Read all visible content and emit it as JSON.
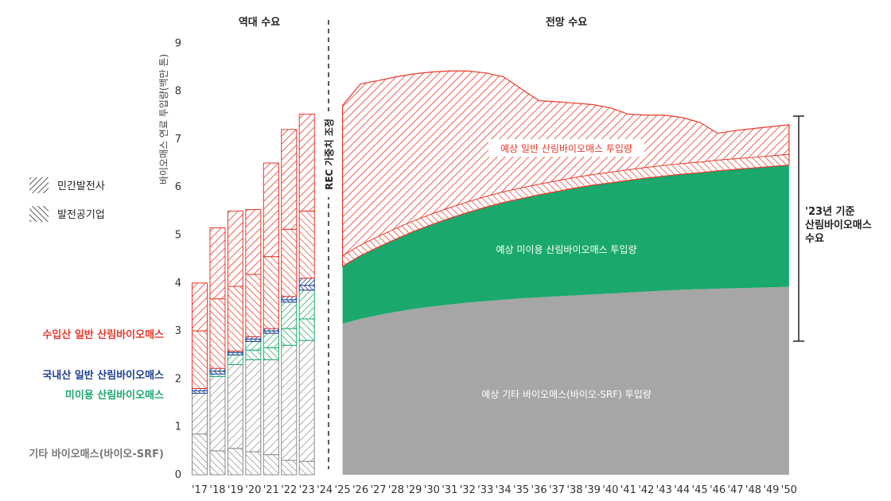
{
  "chart_data": {
    "type": "area",
    "ylabel": "바이오매스 연료 투입량(백만 톤)",
    "ylim": [
      0,
      9
    ],
    "yticks": [
      0,
      1,
      2,
      3,
      4,
      5,
      6,
      7,
      8,
      9
    ],
    "x_ticks": [
      "'17",
      "'18",
      "'19",
      "'20",
      "'21",
      "'22",
      "'23",
      "'24",
      "'25",
      "'26",
      "'27",
      "'28",
      "'29",
      "'30",
      "'31",
      "'32",
      "'33",
      "'34",
      "'35",
      "'36",
      "'37",
      "'38",
      "'39",
      "'40",
      "'41",
      "'42",
      "'43",
      "'44",
      "'45",
      "'46",
      "'47",
      "'48",
      "'49",
      "'50"
    ],
    "sections": {
      "historical": "역대 수요",
      "forecast": "전망 수요"
    },
    "divider_label": "REC 가중치 조정",
    "legend": {
      "private": "민간발전사",
      "public": "발전공기업"
    },
    "category_labels": {
      "imported": "수입산 일반 산림바이오매스",
      "domestic": "국내산 일반 산림바이오매스",
      "unused": "미이용 산림바이오매스",
      "other": "기타 바이오매스(바이오-SRF)"
    },
    "area_labels": {
      "general": "예상 일반 산림바이오매스 투입량",
      "unused": "예상 미이용 산림바이오매스 투입량",
      "other": "예상 기타 바이오매스(바이오-SRF) 투입량"
    },
    "bracket_label": [
      "'23년 기준",
      "산림바이오매스",
      "수요"
    ],
    "colors": {
      "imported": "#e8382b",
      "domestic": "#1d3f8f",
      "unused": "#1aa86c",
      "other": "#8a8a8a",
      "other_area": "#a6a6a6"
    },
    "historical": {
      "years": [
        "'17",
        "'18",
        "'19",
        "'20",
        "'21",
        "'22",
        "'23"
      ],
      "other": [
        1.7,
        2.05,
        2.3,
        2.4,
        2.4,
        2.7,
        2.8
      ],
      "unused": [
        0.0,
        0.05,
        0.2,
        0.38,
        0.55,
        0.9,
        1.05
      ],
      "domestic": [
        0.1,
        0.12,
        0.08,
        0.1,
        0.1,
        0.12,
        0.25
      ],
      "imported": [
        2.2,
        2.93,
        2.92,
        2.65,
        3.45,
        3.48,
        3.42
      ],
      "other_public": [
        0.85,
        0.5,
        0.55,
        0.48,
        0.42,
        0.3,
        0.28
      ],
      "unused_public": [
        0.0,
        0.0,
        0.0,
        0.2,
        0.25,
        0.35,
        0.45
      ],
      "domestic_public": [
        0.05,
        0.06,
        0.05,
        0.05,
        0.05,
        0.05,
        0.1
      ],
      "imported_public": [
        1.2,
        1.45,
        1.35,
        1.3,
        1.5,
        1.4,
        1.4
      ]
    },
    "forecast": {
      "years": [
        "'25",
        "'26",
        "'27",
        "'28",
        "'29",
        "'30",
        "'31",
        "'32",
        "'33",
        "'34",
        "'35",
        "'36",
        "'37",
        "'38",
        "'39",
        "'40",
        "'41",
        "'42",
        "'43",
        "'44",
        "'45",
        "'46",
        "'47",
        "'48",
        "'49",
        "'50"
      ],
      "other": [
        3.15,
        3.25,
        3.33,
        3.4,
        3.46,
        3.51,
        3.55,
        3.59,
        3.62,
        3.65,
        3.68,
        3.7,
        3.72,
        3.74,
        3.76,
        3.78,
        3.8,
        3.82,
        3.84,
        3.86,
        3.87,
        3.88,
        3.89,
        3.9,
        3.91,
        3.92
      ],
      "unused_top": [
        4.35,
        4.57,
        4.75,
        4.92,
        5.08,
        5.22,
        5.35,
        5.47,
        5.58,
        5.68,
        5.76,
        5.84,
        5.91,
        5.98,
        6.04,
        6.09,
        6.14,
        6.19,
        6.23,
        6.27,
        6.3,
        6.34,
        6.37,
        6.4,
        6.43,
        6.46
      ],
      "general_top": [
        7.7,
        8.15,
        8.22,
        8.3,
        8.36,
        8.4,
        8.42,
        8.42,
        8.38,
        8.3,
        8.05,
        7.8,
        7.78,
        7.75,
        7.72,
        7.65,
        7.52,
        7.5,
        7.5,
        7.45,
        7.35,
        7.12,
        7.18,
        7.22,
        7.26,
        7.3
      ]
    }
  }
}
